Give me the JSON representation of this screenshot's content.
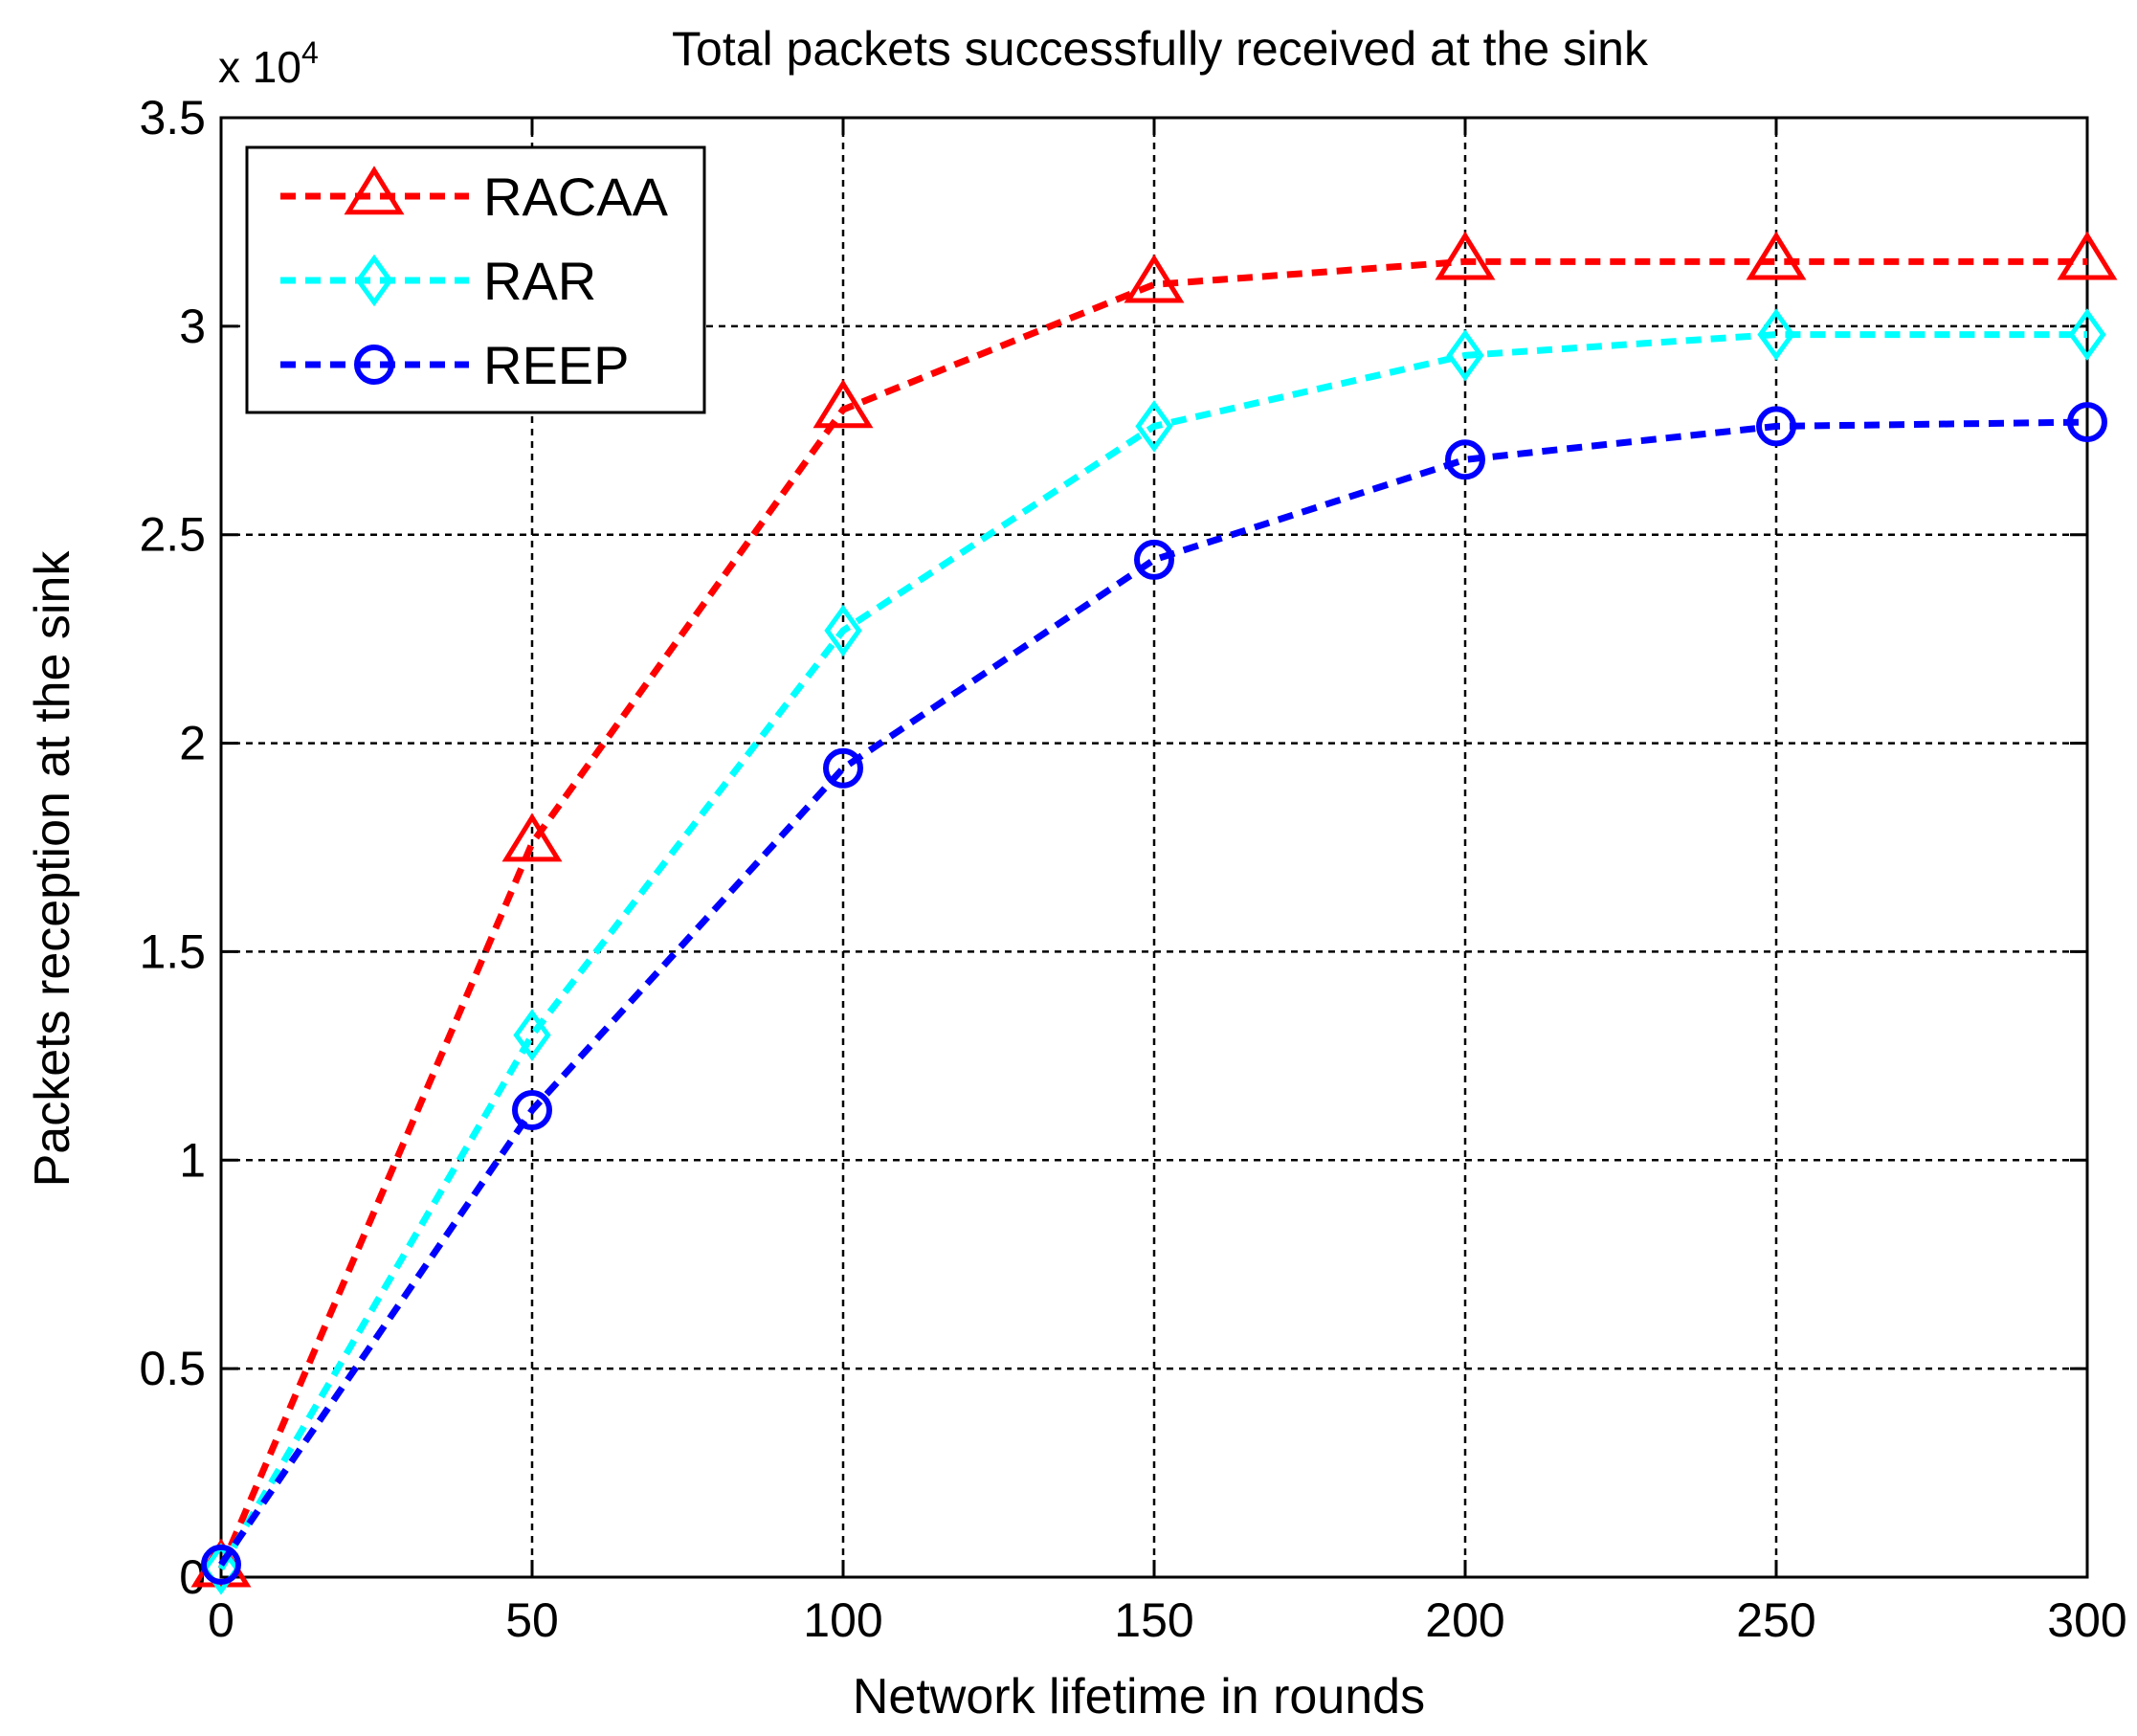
{
  "chart_data": {
    "type": "line",
    "title": "Total packets successfully received at the sink",
    "xlabel": "Network lifetime in rounds",
    "ylabel": "Packets reception at the sink",
    "y_multiplier_base": "x 10",
    "y_multiplier_exponent": "4",
    "x": [
      0,
      50,
      100,
      150,
      200,
      250,
      300
    ],
    "xlim": [
      0,
      300
    ],
    "ylim": [
      0,
      3.5
    ],
    "xticks": [
      0,
      50,
      100,
      150,
      200,
      250,
      300
    ],
    "yticks": [
      0,
      0.5,
      1,
      1.5,
      2,
      2.5,
      3,
      3.5
    ],
    "xtick_labels": [
      "0",
      "50",
      "100",
      "150",
      "200",
      "250",
      "300"
    ],
    "ytick_labels": [
      "0",
      "0.5",
      "1",
      "1.5",
      "2",
      "2.5",
      "3",
      "3.5"
    ],
    "grid": true,
    "legend_position": "top-left",
    "series": [
      {
        "name": "RACAA",
        "color": "#ff0000",
        "marker": "triangle",
        "values": [
          0.02,
          1.76,
          2.8,
          3.1,
          3.155,
          3.155,
          3.155
        ]
      },
      {
        "name": "RAR",
        "color": "#00ffff",
        "marker": "diamond",
        "values": [
          0.02,
          1.3,
          2.27,
          2.76,
          2.93,
          2.98,
          2.98
        ]
      },
      {
        "name": "REEP",
        "color": "#0000ff",
        "marker": "circle",
        "values": [
          0.03,
          1.12,
          1.94,
          2.44,
          2.68,
          2.76,
          2.77
        ]
      }
    ]
  }
}
